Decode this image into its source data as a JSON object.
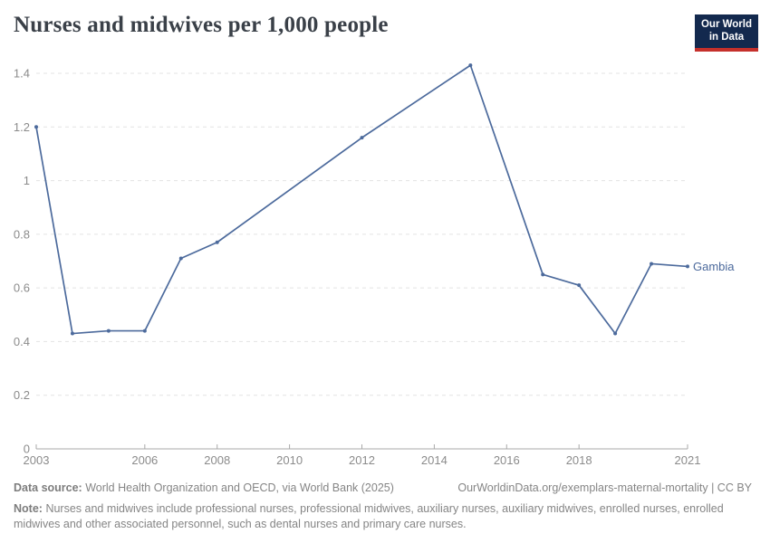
{
  "header": {
    "title": "Nurses and midwives per 1,000 people",
    "logo": {
      "line1": "Our World",
      "line2": "in Data"
    }
  },
  "chart_data": {
    "type": "line",
    "title": "Nurses and midwives per 1,000 people",
    "xlabel": "",
    "ylabel": "",
    "xlim": [
      2003,
      2021
    ],
    "ylim": [
      0,
      1.4
    ],
    "x_ticks": [
      2003,
      2006,
      2008,
      2010,
      2012,
      2014,
      2016,
      2018,
      2021
    ],
    "y_ticks": [
      0,
      0.2,
      0.4,
      0.6,
      0.8,
      1,
      1.2,
      1.4
    ],
    "grid": "horizontal-dashed",
    "legend_position": "end-of-line-label",
    "series": [
      {
        "name": "Gambia",
        "color": "#4c6a9c",
        "points": [
          [
            2003,
            1.2
          ],
          [
            2004,
            0.43
          ],
          [
            2005,
            0.44
          ],
          [
            2006,
            0.44
          ],
          [
            2007,
            0.71
          ],
          [
            2008,
            0.77
          ],
          [
            2012,
            1.16
          ],
          [
            2015,
            1.43
          ],
          [
            2017,
            0.65
          ],
          [
            2018,
            0.61
          ],
          [
            2019,
            0.43
          ],
          [
            2020,
            0.69
          ],
          [
            2021,
            0.68
          ]
        ]
      }
    ]
  },
  "footer": {
    "data_source_label": "Data source:",
    "data_source_text": "World Health Organization and OECD, via World Bank (2025)",
    "link_text": "OurWorldinData.org/exemplars-maternal-mortality | CC BY",
    "note_label": "Note:",
    "note_text": "Nurses and midwives include professional nurses, professional midwives, auxiliary nurses, auxiliary midwives, enrolled nurses, enrolled midwives and other associated personnel, such as dental nurses and primary care nurses."
  },
  "colors": {
    "line": "#4c6a9c",
    "grid": "#e3e3e3",
    "axis": "#a8a8a8",
    "tick_label": "#8b8b8b",
    "title_text": "#3a4048",
    "footer_text": "#858585",
    "logo_bg": "#13294e",
    "logo_stripe": "#c5302b"
  }
}
